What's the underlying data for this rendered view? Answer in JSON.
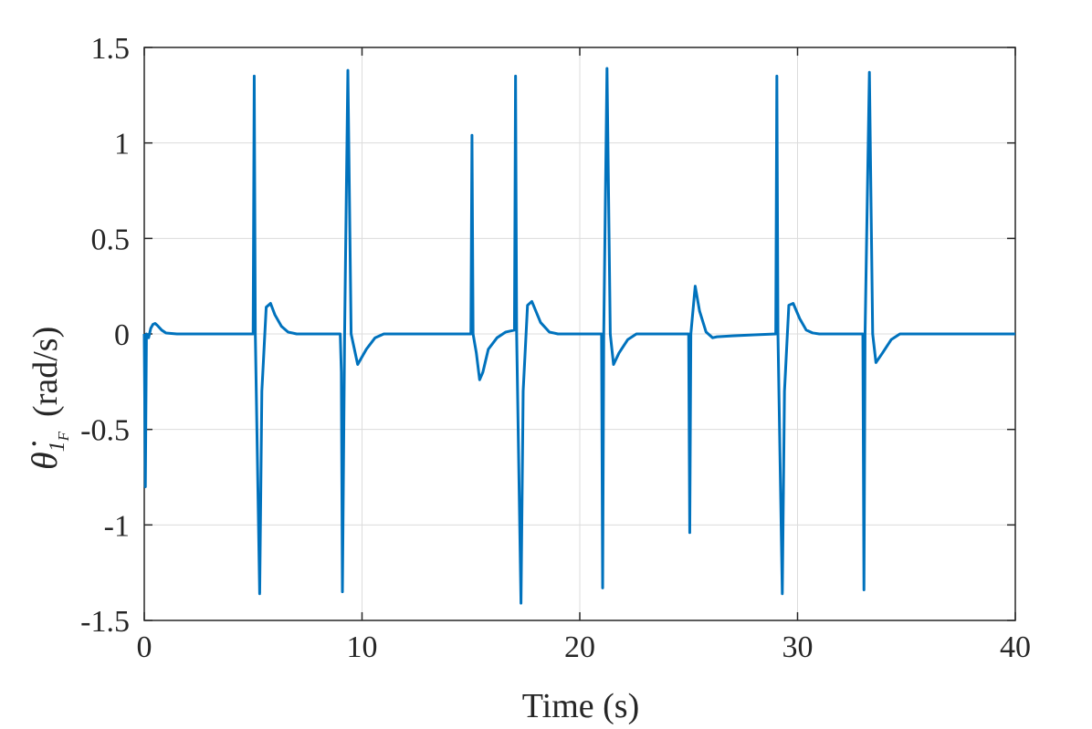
{
  "chart_data": {
    "type": "line",
    "xlabel": "Time (s)",
    "ylabel": {
      "symbol": "θ̇",
      "subscript": "1",
      "subsubscript": "F",
      "unit": "(rad/s)"
    },
    "xlim": [
      0,
      40
    ],
    "ylim": [
      -1.5,
      1.5
    ],
    "x_ticks": [
      0,
      10,
      20,
      30,
      40
    ],
    "x_tick_labels": [
      "0",
      "10",
      "20",
      "30",
      "40"
    ],
    "y_ticks": [
      -1.5,
      -1,
      -0.5,
      0,
      0.5,
      1,
      1.5
    ],
    "y_tick_labels": [
      "-1.5",
      "-1",
      "-0.5",
      "0",
      "0.5",
      "1",
      "1.5"
    ],
    "grid": true,
    "colors": {
      "line": "#0072BD",
      "axis": "#262626",
      "grid": "#dcdcdc"
    },
    "series": [
      {
        "x": [
          0,
          0.05,
          0.1,
          0.2,
          0.3,
          0.4,
          0.5,
          0.6,
          0.8,
          1.0,
          1.5,
          5.0,
          5.05,
          5.1,
          5.3,
          5.4,
          5.6,
          5.8,
          6.0,
          6.3,
          6.6,
          7.0,
          9.0,
          9.05,
          9.1,
          9.2,
          9.35,
          9.5,
          9.8,
          10.2,
          10.6,
          11.0,
          15.0,
          15.05,
          15.1,
          15.25,
          15.4,
          15.55,
          15.8,
          16.2,
          16.6,
          17.0,
          17.05,
          17.1,
          17.3,
          17.4,
          17.6,
          17.8,
          18.2,
          18.6,
          19.0,
          21.0,
          21.05,
          21.1,
          21.25,
          21.4,
          21.55,
          21.8,
          22.2,
          22.6,
          23.0,
          25.0,
          25.05,
          25.1,
          25.3,
          25.5,
          25.8,
          26.1,
          26.3,
          27.0,
          28.0,
          29.0,
          29.05,
          29.1,
          29.3,
          29.4,
          29.6,
          29.8,
          30.1,
          30.4,
          30.7,
          31.0,
          33.0,
          33.05,
          33.1,
          33.3,
          33.45,
          33.6,
          33.9,
          34.3,
          34.7,
          35.0,
          40.0
        ],
        "y": [
          0,
          -0.8,
          0,
          -0.02,
          0.03,
          0.05,
          0.055,
          0.045,
          0.02,
          0.005,
          0,
          0,
          1.35,
          0,
          -1.36,
          -0.3,
          0.14,
          0.16,
          0.1,
          0.04,
          0.01,
          0,
          0,
          -0.2,
          -1.35,
          0,
          1.38,
          0,
          -0.16,
          -0.08,
          -0.02,
          0,
          0,
          1.04,
          0,
          -0.1,
          -0.24,
          -0.2,
          -0.08,
          -0.02,
          0.01,
          0.02,
          1.35,
          0,
          -1.41,
          -0.3,
          0.15,
          0.17,
          0.06,
          0.01,
          0,
          0,
          -1.33,
          0,
          1.39,
          0,
          -0.16,
          -0.1,
          -0.03,
          0,
          0,
          0,
          -1.04,
          0,
          0.25,
          0.12,
          0.01,
          -0.02,
          -0.015,
          -0.01,
          -0.005,
          0,
          1.35,
          0,
          -1.36,
          -0.3,
          0.15,
          0.16,
          0.08,
          0.02,
          0.005,
          0,
          0,
          -1.34,
          0,
          1.37,
          0,
          -0.15,
          -0.1,
          -0.03,
          0,
          0,
          0
        ]
      }
    ]
  }
}
